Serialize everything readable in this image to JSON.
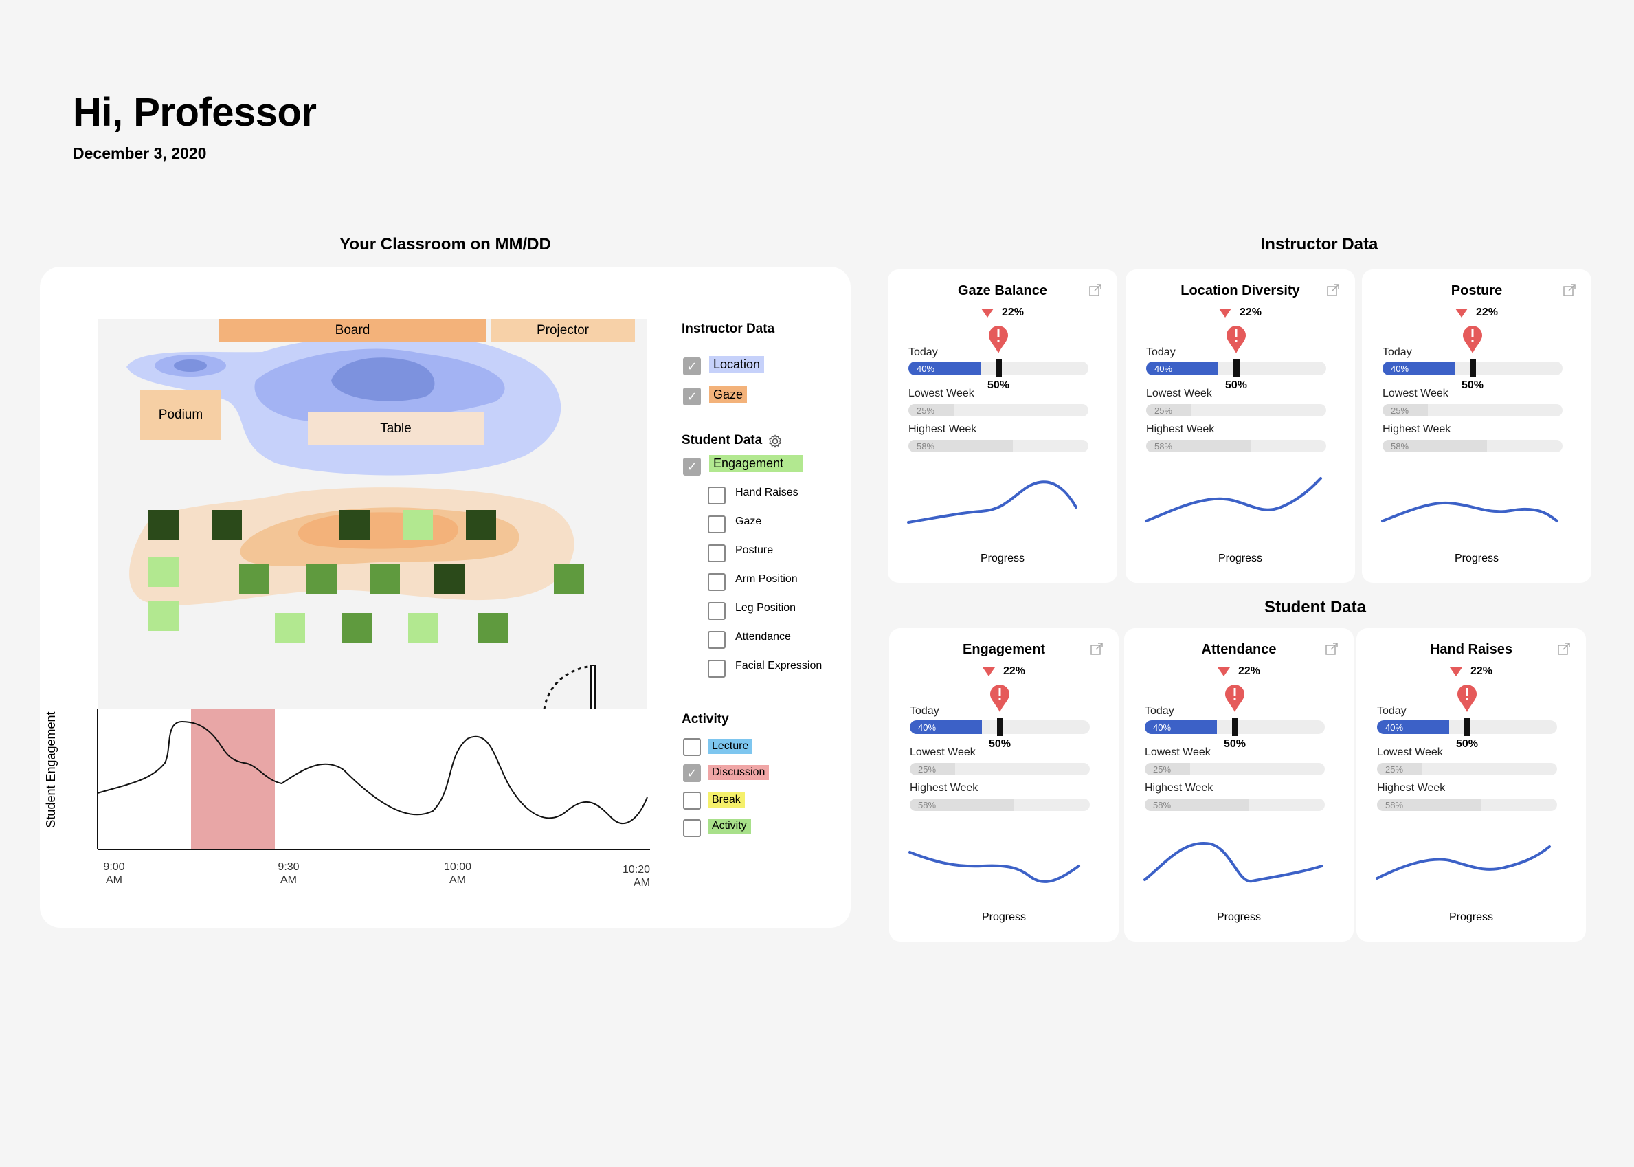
{
  "header": {
    "greeting": "Hi, Professor",
    "date": "December 3, 2020"
  },
  "sections": {
    "classroom_title": "Your Classroom on MM/DD",
    "instructor_title": "Instructor Data",
    "student_title": "Student Data"
  },
  "classroom_map": {
    "board_label": "Board",
    "projector_label": "Projector",
    "podium_label": "Podium",
    "table_label": "Table",
    "seat_colors": {
      "high": "#2b4a1a",
      "mid": "#5f9a3e",
      "low": "#b2e890"
    }
  },
  "legend": {
    "instructor_heading": "Instructor Data",
    "instructor_items": [
      {
        "label": "Location",
        "checked": true,
        "color": "#c6d1fa"
      },
      {
        "label": "Gaze",
        "checked": true,
        "color": "#f3b27a"
      }
    ],
    "student_heading": "Student Data",
    "engagement": {
      "label": "Engagement",
      "checked": true,
      "color": "#b2e890"
    },
    "student_items": [
      "Hand Raises",
      "Gaze",
      "Posture",
      "Arm Position",
      "Leg Position",
      "Attendance",
      "Facial Expression"
    ],
    "activity_heading": "Activity",
    "activity_items": [
      {
        "label": "Lecture",
        "checked": false,
        "color": "#7ec6ef"
      },
      {
        "label": "Discussion",
        "checked": true,
        "color": "#f0a6a6"
      },
      {
        "label": "Break",
        "checked": false,
        "color": "#f5f06b"
      },
      {
        "label": "Activity",
        "checked": false,
        "color": "#a8e08a"
      }
    ]
  },
  "timeline": {
    "ylabel": "Student Engagement",
    "ticks": [
      {
        "time": "9:00",
        "ampm": "AM"
      },
      {
        "time": "9:30",
        "ampm": "AM"
      },
      {
        "time": "10:00",
        "ampm": "AM"
      },
      {
        "time": "10:20",
        "ampm": "AM"
      }
    ],
    "highlight_activity": "Discussion",
    "highlight_color": "#e8a6a6"
  },
  "metric_common": {
    "delta": "22%",
    "today_label": "Today",
    "today_value": 40,
    "today_text": "40%",
    "target_value": 50,
    "target_text": "50%",
    "lowest_label": "Lowest Week",
    "lowest_value": 25,
    "lowest_text": "25%",
    "highest_label": "Highest Week",
    "highest_value": 58,
    "highest_text": "58%",
    "progress_label": "Progress"
  },
  "instructor_metrics": [
    {
      "title": "Gaze Balance"
    },
    {
      "title": "Location Diversity"
    },
    {
      "title": "Posture"
    }
  ],
  "student_metrics": [
    {
      "title": "Engagement"
    },
    {
      "title": "Attendance"
    },
    {
      "title": "Hand Raises"
    }
  ],
  "colors": {
    "accent_blue": "#3c61c7",
    "alert_red": "#e55a5a"
  }
}
